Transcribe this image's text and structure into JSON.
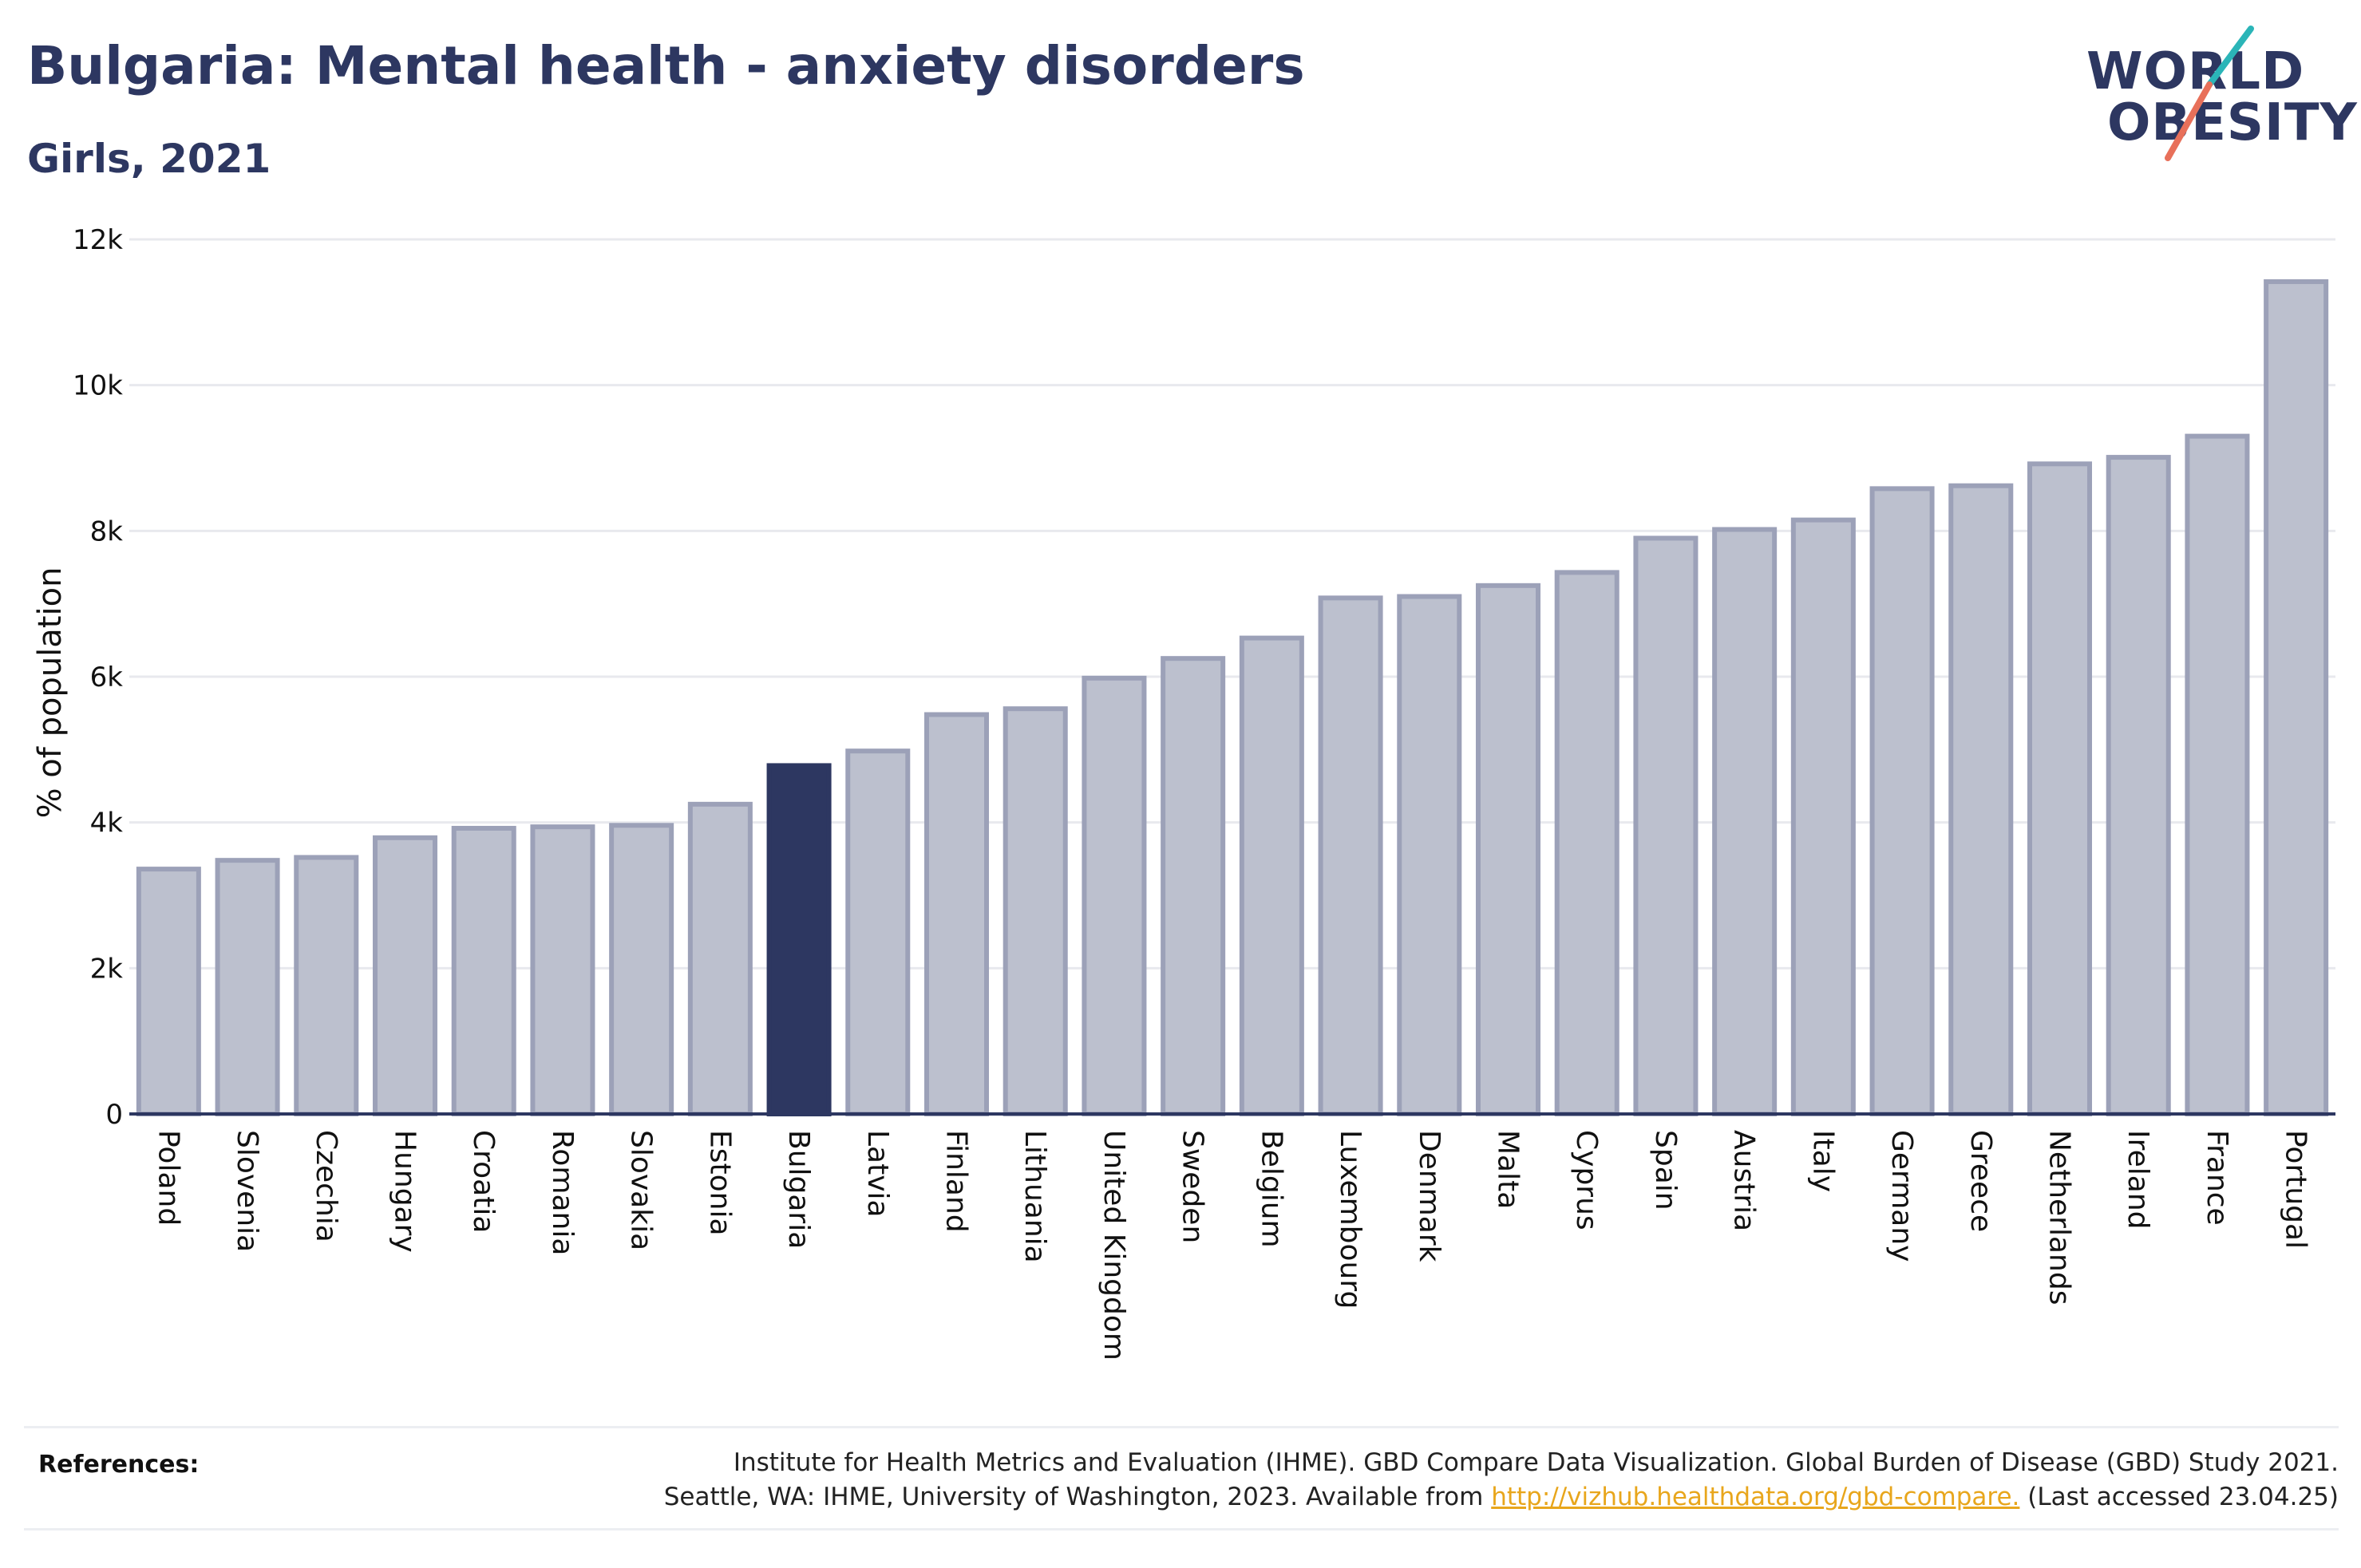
{
  "header": {
    "title": "Bulgaria: Mental health - anxiety disorders",
    "subtitle": "Girls, 2021"
  },
  "logo": {
    "line1": "WORLD",
    "line2": "OBESITY",
    "text_color": "#2d3761",
    "slash_colors": [
      "#2bb5b8",
      "#e8705a"
    ]
  },
  "colors": {
    "bar_default": "#bcc0ce",
    "bar_default_stroke": "#9ca1b8",
    "bar_highlight": "#2d3761",
    "axis": "#2d3761",
    "grid": "#e8e9ee",
    "text": "#111111"
  },
  "chart_data": {
    "type": "bar",
    "title": "Bulgaria: Mental health - anxiety disorders",
    "subtitle": "Girls, 2021",
    "xlabel": "",
    "ylabel": "% of population",
    "ylim": [
      0,
      12000
    ],
    "yticks": [
      0,
      2000,
      4000,
      6000,
      8000,
      10000,
      12000
    ],
    "ytick_labels": [
      "0",
      "2k",
      "4k",
      "6k",
      "8k",
      "10k",
      "12k"
    ],
    "grid": true,
    "highlight": "Bulgaria",
    "categories": [
      "Poland",
      "Slovenia",
      "Czechia",
      "Hungary",
      "Croatia",
      "Romania",
      "Slovakia",
      "Estonia",
      "Bulgaria",
      "Latvia",
      "Finland",
      "Lithuania",
      "United Kingdom",
      "Sweden",
      "Belgium",
      "Luxembourg",
      "Denmark",
      "Malta",
      "Cyprus",
      "Spain",
      "Austria",
      "Italy",
      "Germany",
      "Greece",
      "Netherlands",
      "Ireland",
      "France",
      "Portugal"
    ],
    "values": [
      3360,
      3480,
      3520,
      3790,
      3920,
      3940,
      3960,
      4250,
      4780,
      4980,
      5480,
      5560,
      5980,
      6250,
      6530,
      7080,
      7100,
      7250,
      7430,
      7900,
      8020,
      8150,
      8580,
      8620,
      8920,
      9010,
      9300,
      11420
    ]
  },
  "references": {
    "label": "References:",
    "line1": "Institute for Health Metrics and Evaluation (IHME). GBD Compare Data Visualization. Global Burden of Disease (GBD) Study 2021.",
    "line2_before": "Seattle, WA: IHME, University of Washington, 2023. Available from ",
    "link": "http://vizhub.healthdata.org/gbd-compare.",
    "line2_after": " (Last accessed 23.04.25)"
  }
}
